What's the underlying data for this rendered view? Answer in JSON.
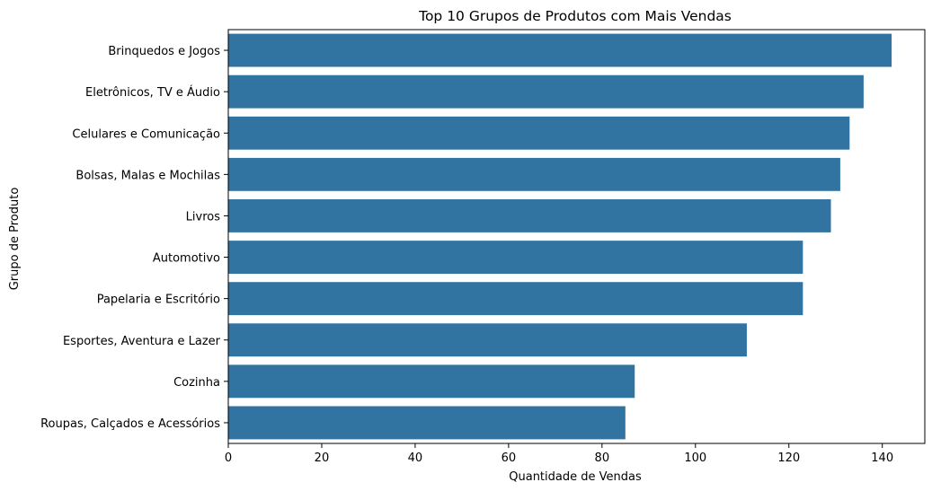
{
  "chart_data": {
    "type": "bar",
    "orientation": "horizontal",
    "title": "Top 10 Grupos de Produtos com Mais Vendas",
    "xlabel": "Quantidade de Vendas",
    "ylabel": "Grupo de Produto",
    "categories": [
      "Brinquedos e Jogos",
      "Eletrônicos, TV e Áudio",
      "Celulares e Comunicação",
      "Bolsas, Malas e Mochilas",
      "Livros",
      "Automotivo",
      "Papelaria e Escritório",
      "Esportes, Aventura e Lazer",
      "Cozinha",
      "Roupas, Calçados e Acessórios"
    ],
    "values": [
      142,
      136,
      133,
      131,
      129,
      123,
      123,
      111,
      87,
      85
    ],
    "xlim": [
      0,
      149.1
    ],
    "xticks": [
      0,
      20,
      40,
      60,
      80,
      100,
      120,
      140
    ],
    "xtick_labels": [
      "0",
      "20",
      "40",
      "60",
      "80",
      "100",
      "120",
      "140"
    ],
    "grid": false,
    "bar_color": "#3274a1"
  }
}
